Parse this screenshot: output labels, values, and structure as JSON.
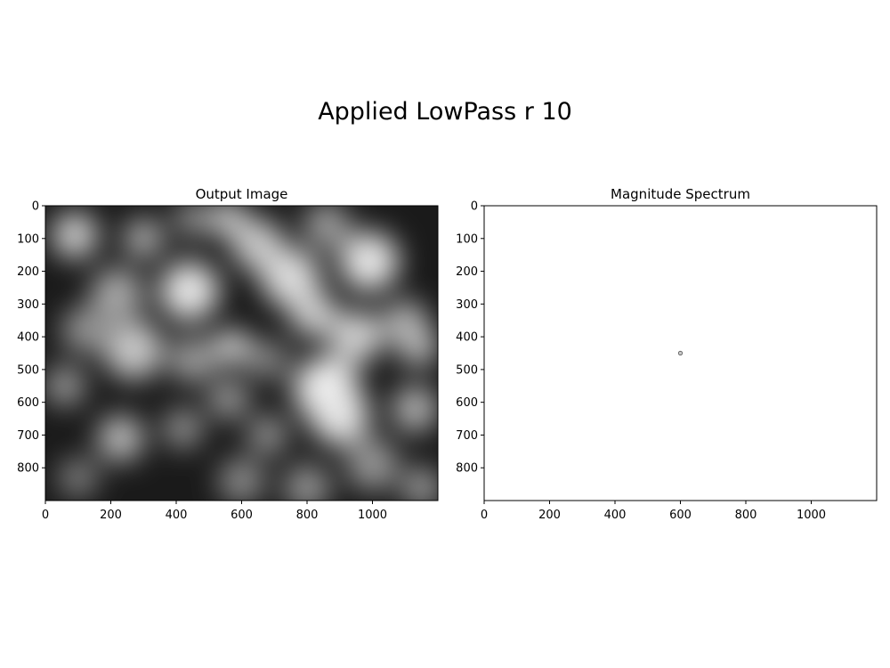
{
  "title": "Applied LowPass r 10",
  "chart_data": [
    {
      "type": "heatmap",
      "title": "Output Image",
      "colormap": "gray",
      "xlim": [
        0,
        1200
      ],
      "ylim": [
        900,
        0
      ],
      "xticks": [
        0,
        200,
        400,
        600,
        800,
        1000
      ],
      "yticks": [
        0,
        100,
        200,
        300,
        400,
        500,
        600,
        700,
        800
      ],
      "blobs": [
        {
          "x": 90,
          "y": 90,
          "r": 70,
          "v": 0.85
        },
        {
          "x": 300,
          "y": 100,
          "r": 60,
          "v": 0.7
        },
        {
          "x": 450,
          "y": 40,
          "r": 55,
          "v": 0.55
        },
        {
          "x": 560,
          "y": 40,
          "r": 55,
          "v": 0.85
        },
        {
          "x": 650,
          "y": 120,
          "r": 80,
          "v": 0.8
        },
        {
          "x": 860,
          "y": 60,
          "r": 70,
          "v": 0.6
        },
        {
          "x": 990,
          "y": 170,
          "r": 90,
          "v": 0.95
        },
        {
          "x": 220,
          "y": 270,
          "r": 80,
          "v": 0.65
        },
        {
          "x": 440,
          "y": 260,
          "r": 90,
          "v": 0.95
        },
        {
          "x": 750,
          "y": 220,
          "r": 90,
          "v": 0.9
        },
        {
          "x": 820,
          "y": 330,
          "r": 70,
          "v": 0.85
        },
        {
          "x": 1100,
          "y": 360,
          "r": 70,
          "v": 0.7
        },
        {
          "x": 120,
          "y": 380,
          "r": 70,
          "v": 0.55
        },
        {
          "x": 270,
          "y": 440,
          "r": 90,
          "v": 0.8
        },
        {
          "x": 570,
          "y": 430,
          "r": 50,
          "v": 1.0
        },
        {
          "x": 950,
          "y": 400,
          "r": 80,
          "v": 0.85
        },
        {
          "x": 1140,
          "y": 430,
          "r": 60,
          "v": 0.75
        },
        {
          "x": 450,
          "y": 470,
          "r": 70,
          "v": 0.6
        },
        {
          "x": 680,
          "y": 470,
          "r": 60,
          "v": 0.5
        },
        {
          "x": 860,
          "y": 560,
          "r": 100,
          "v": 1.0
        },
        {
          "x": 900,
          "y": 640,
          "r": 90,
          "v": 0.95
        },
        {
          "x": 1130,
          "y": 620,
          "r": 70,
          "v": 0.7
        },
        {
          "x": 60,
          "y": 550,
          "r": 60,
          "v": 0.6
        },
        {
          "x": 560,
          "y": 590,
          "r": 60,
          "v": 0.6
        },
        {
          "x": 230,
          "y": 710,
          "r": 70,
          "v": 0.75
        },
        {
          "x": 420,
          "y": 680,
          "r": 60,
          "v": 0.55
        },
        {
          "x": 680,
          "y": 700,
          "r": 60,
          "v": 0.55
        },
        {
          "x": 1000,
          "y": 790,
          "r": 80,
          "v": 0.55
        },
        {
          "x": 100,
          "y": 830,
          "r": 60,
          "v": 0.45
        },
        {
          "x": 600,
          "y": 840,
          "r": 70,
          "v": 0.5
        },
        {
          "x": 800,
          "y": 860,
          "r": 70,
          "v": 0.55
        },
        {
          "x": 1150,
          "y": 860,
          "r": 60,
          "v": 0.6
        }
      ]
    },
    {
      "type": "heatmap",
      "title": "Magnitude Spectrum",
      "colormap": "gray",
      "xlim": [
        0,
        1200
      ],
      "ylim": [
        900,
        0
      ],
      "xticks": [
        0,
        200,
        400,
        600,
        800,
        1000
      ],
      "yticks": [
        0,
        100,
        200,
        300,
        400,
        500,
        600,
        700,
        800
      ],
      "peak": {
        "x": 600,
        "y": 450,
        "r": 10
      }
    }
  ]
}
